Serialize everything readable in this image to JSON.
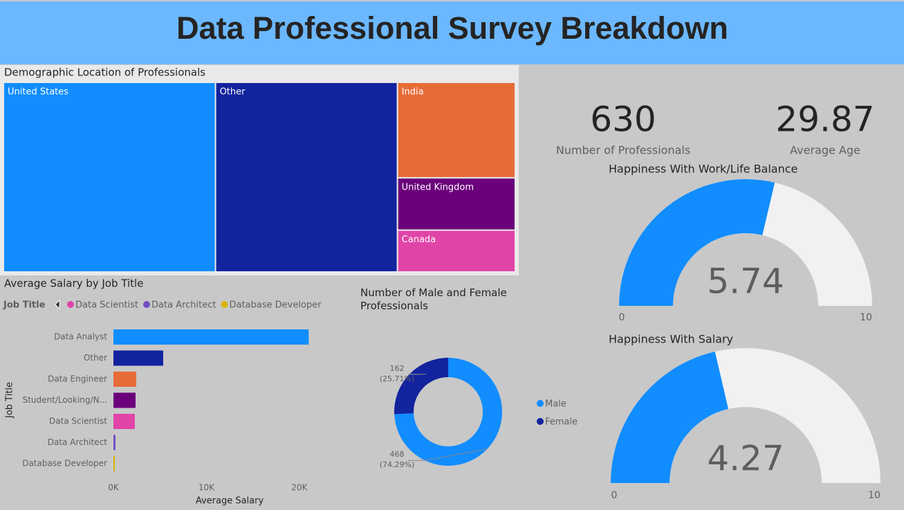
{
  "title": "Data Professional Survey Breakdown",
  "chart_data": [
    {
      "type": "treemap",
      "title": "Demographic Location of Professionals",
      "categories": [
        "United States",
        "Other",
        "India",
        "United Kingdom",
        "Canada"
      ],
      "values": [
        261,
        224,
        73,
        40,
        32
      ],
      "colors": [
        "#118dff",
        "#12239e",
        "#e66c37",
        "#6b007b",
        "#e044a7"
      ]
    },
    {
      "type": "card",
      "value": 630,
      "label": "Number of Professionals"
    },
    {
      "type": "card",
      "value": 29.87,
      "label": "Average Age"
    },
    {
      "type": "gauge",
      "title": "Happiness With Work/Life Balance",
      "value": 5.74,
      "ylim": [
        0,
        10
      ],
      "yticks": [
        0,
        10
      ],
      "color": "#118dff",
      "track_color": "#f1f1f1"
    },
    {
      "type": "gauge",
      "title": "Happiness With Salary",
      "value": 4.27,
      "ylim": [
        0,
        10
      ],
      "yticks": [
        0,
        10
      ],
      "color": "#118dff",
      "track_color": "#f1f1f1"
    },
    {
      "type": "bar",
      "orientation": "horizontal",
      "title": "Average Salary by Job Title",
      "legend": {
        "title": "Job Title",
        "items": [
          "Data Scientist",
          "Data Architect",
          "Database Developer"
        ],
        "colors": [
          "#e044a7",
          "#744ec2",
          "#d9b300"
        ]
      },
      "categories": [
        "Data Analyst",
        "Other",
        "Data Engineer",
        "Student/Looking/N...",
        "Data Scientist",
        "Data Architect",
        "Database Developer"
      ],
      "values": [
        21000,
        5350,
        2450,
        2380,
        2300,
        220,
        150
      ],
      "colors": [
        "#118dff",
        "#12239e",
        "#e66c37",
        "#6b007b",
        "#e044a7",
        "#744ec2",
        "#d9b300"
      ],
      "xlim": [
        0,
        21500
      ],
      "xticks": [
        {
          "value": 0,
          "label": "0K"
        },
        {
          "value": 10000,
          "label": "10K"
        },
        {
          "value": 20000,
          "label": "20K"
        }
      ],
      "xlabel": "Average Salary",
      "ylabel": "Job Title"
    },
    {
      "type": "pie",
      "donut": true,
      "title": "Number of Male and Female Professionals",
      "categories": [
        "Male",
        "Female"
      ],
      "values": [
        468,
        162
      ],
      "percent_labels": [
        "(74.29%)",
        "(25.71%)"
      ],
      "colors": [
        "#118dff",
        "#12239e"
      ]
    }
  ]
}
